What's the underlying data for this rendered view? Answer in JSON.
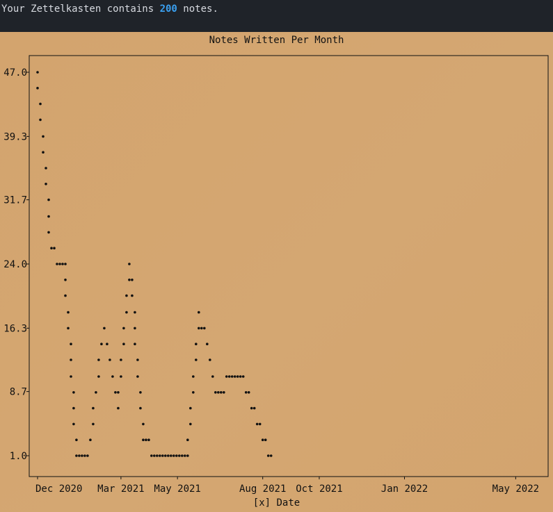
{
  "terminal": {
    "prefix": "Your Zettelkasten contains ",
    "count": "200",
    "suffix": " notes."
  },
  "colors": {
    "terminal_bg": "#1f2329",
    "count_accent": "#3aa0f0",
    "chart_bg": "#d3a46e",
    "points": "#111111"
  },
  "chart_data": {
    "type": "scatter",
    "title": "Notes Written Per Month",
    "xlabel": "[x] Date",
    "ylabel": "",
    "xlim": [
      "2020-11-28",
      "2022-05-30"
    ],
    "ylim": [
      1.0,
      47.0
    ],
    "yticks": [
      1.0,
      8.7,
      16.3,
      24.0,
      31.7,
      39.3,
      47.0
    ],
    "ytick_labels": [
      "1.0",
      "8.7",
      "16.3",
      "24.0",
      "31.7",
      "39.3",
      "47.0"
    ],
    "xticks": [
      "2020-12-01",
      "2021-03-01",
      "2021-05-01",
      "2021-08-01",
      "2021-10-01",
      "2022-01-01",
      "2022-05-01"
    ],
    "xtick_labels": [
      "Dec 2020",
      "Mar 2021",
      "May 2021",
      "Aug 2021",
      "Oct 2021",
      "Jan 2022",
      "May 2022"
    ],
    "grid": false,
    "points": [
      [
        "2020-12-01",
        47.0
      ],
      [
        "2020-12-01",
        45.1
      ],
      [
        "2020-12-04",
        43.2
      ],
      [
        "2020-12-04",
        41.3
      ],
      [
        "2020-12-07",
        39.3
      ],
      [
        "2020-12-07",
        37.4
      ],
      [
        "2020-12-10",
        35.5
      ],
      [
        "2020-12-10",
        33.6
      ],
      [
        "2020-12-13",
        31.7
      ],
      [
        "2020-12-13",
        29.7
      ],
      [
        "2020-12-13",
        27.8
      ],
      [
        "2020-12-16",
        25.9
      ],
      [
        "2020-12-19",
        25.9
      ],
      [
        "2020-12-22",
        24.0
      ],
      [
        "2020-12-25",
        24.0
      ],
      [
        "2020-12-28",
        24.0
      ],
      [
        "2020-12-31",
        24.0
      ],
      [
        "2020-12-31",
        22.1
      ],
      [
        "2020-12-31",
        20.2
      ],
      [
        "2021-01-03",
        18.2
      ],
      [
        "2021-01-03",
        16.3
      ],
      [
        "2021-01-06",
        14.4
      ],
      [
        "2021-01-06",
        12.5
      ],
      [
        "2021-01-06",
        10.5
      ],
      [
        "2021-01-09",
        8.6
      ],
      [
        "2021-01-09",
        6.7
      ],
      [
        "2021-01-09",
        4.8
      ],
      [
        "2021-01-12",
        2.9
      ],
      [
        "2021-01-12",
        1.0
      ],
      [
        "2021-01-15",
        1.0
      ],
      [
        "2021-01-18",
        1.0
      ],
      [
        "2021-01-21",
        1.0
      ],
      [
        "2021-01-24",
        1.0
      ],
      [
        "2021-01-27",
        2.9
      ],
      [
        "2021-01-30",
        4.8
      ],
      [
        "2021-01-30",
        6.7
      ],
      [
        "2021-02-02",
        8.6
      ],
      [
        "2021-02-05",
        10.5
      ],
      [
        "2021-02-05",
        12.5
      ],
      [
        "2021-02-08",
        14.4
      ],
      [
        "2021-02-11",
        16.3
      ],
      [
        "2021-02-14",
        14.4
      ],
      [
        "2021-02-17",
        12.5
      ],
      [
        "2021-02-20",
        10.5
      ],
      [
        "2021-02-23",
        8.6
      ],
      [
        "2021-02-26",
        8.6
      ],
      [
        "2021-02-26",
        6.7
      ],
      [
        "2021-03-01",
        10.5
      ],
      [
        "2021-03-01",
        12.5
      ],
      [
        "2021-03-04",
        14.4
      ],
      [
        "2021-03-04",
        16.3
      ],
      [
        "2021-03-07",
        18.2
      ],
      [
        "2021-03-07",
        20.2
      ],
      [
        "2021-03-10",
        22.1
      ],
      [
        "2021-03-10",
        24.0
      ],
      [
        "2021-03-13",
        22.1
      ],
      [
        "2021-03-13",
        20.2
      ],
      [
        "2021-03-16",
        18.2
      ],
      [
        "2021-03-16",
        16.3
      ],
      [
        "2021-03-16",
        14.4
      ],
      [
        "2021-03-19",
        12.5
      ],
      [
        "2021-03-19",
        10.5
      ],
      [
        "2021-03-22",
        8.6
      ],
      [
        "2021-03-22",
        6.7
      ],
      [
        "2021-03-25",
        4.8
      ],
      [
        "2021-03-25",
        2.9
      ],
      [
        "2021-03-28",
        2.9
      ],
      [
        "2021-03-31",
        2.9
      ],
      [
        "2021-04-03",
        1.0
      ],
      [
        "2021-04-06",
        1.0
      ],
      [
        "2021-04-09",
        1.0
      ],
      [
        "2021-04-12",
        1.0
      ],
      [
        "2021-04-15",
        1.0
      ],
      [
        "2021-04-18",
        1.0
      ],
      [
        "2021-04-21",
        1.0
      ],
      [
        "2021-04-24",
        1.0
      ],
      [
        "2021-04-27",
        1.0
      ],
      [
        "2021-04-30",
        1.0
      ],
      [
        "2021-05-03",
        1.0
      ],
      [
        "2021-05-06",
        1.0
      ],
      [
        "2021-05-09",
        1.0
      ],
      [
        "2021-05-12",
        2.9
      ],
      [
        "2021-05-12",
        1.0
      ],
      [
        "2021-05-15",
        4.8
      ],
      [
        "2021-05-15",
        6.7
      ],
      [
        "2021-05-18",
        8.6
      ],
      [
        "2021-05-18",
        10.5
      ],
      [
        "2021-05-21",
        12.5
      ],
      [
        "2021-05-21",
        14.4
      ],
      [
        "2021-05-24",
        16.3
      ],
      [
        "2021-05-24",
        18.2
      ],
      [
        "2021-05-27",
        16.3
      ],
      [
        "2021-05-30",
        16.3
      ],
      [
        "2021-06-02",
        14.4
      ],
      [
        "2021-06-05",
        12.5
      ],
      [
        "2021-06-08",
        10.5
      ],
      [
        "2021-06-11",
        8.6
      ],
      [
        "2021-06-14",
        8.6
      ],
      [
        "2021-06-17",
        8.6
      ],
      [
        "2021-06-20",
        8.6
      ],
      [
        "2021-06-23",
        10.5
      ],
      [
        "2021-06-26",
        10.5
      ],
      [
        "2021-06-29",
        10.5
      ],
      [
        "2021-07-02",
        10.5
      ],
      [
        "2021-07-05",
        10.5
      ],
      [
        "2021-07-08",
        10.5
      ],
      [
        "2021-07-11",
        10.5
      ],
      [
        "2021-07-14",
        8.6
      ],
      [
        "2021-07-17",
        8.6
      ],
      [
        "2021-07-20",
        6.7
      ],
      [
        "2021-07-23",
        6.7
      ],
      [
        "2021-07-26",
        4.8
      ],
      [
        "2021-07-29",
        4.8
      ],
      [
        "2021-08-01",
        2.9
      ],
      [
        "2021-08-04",
        2.9
      ],
      [
        "2021-08-07",
        1.0
      ],
      [
        "2021-08-10",
        1.0
      ]
    ]
  }
}
